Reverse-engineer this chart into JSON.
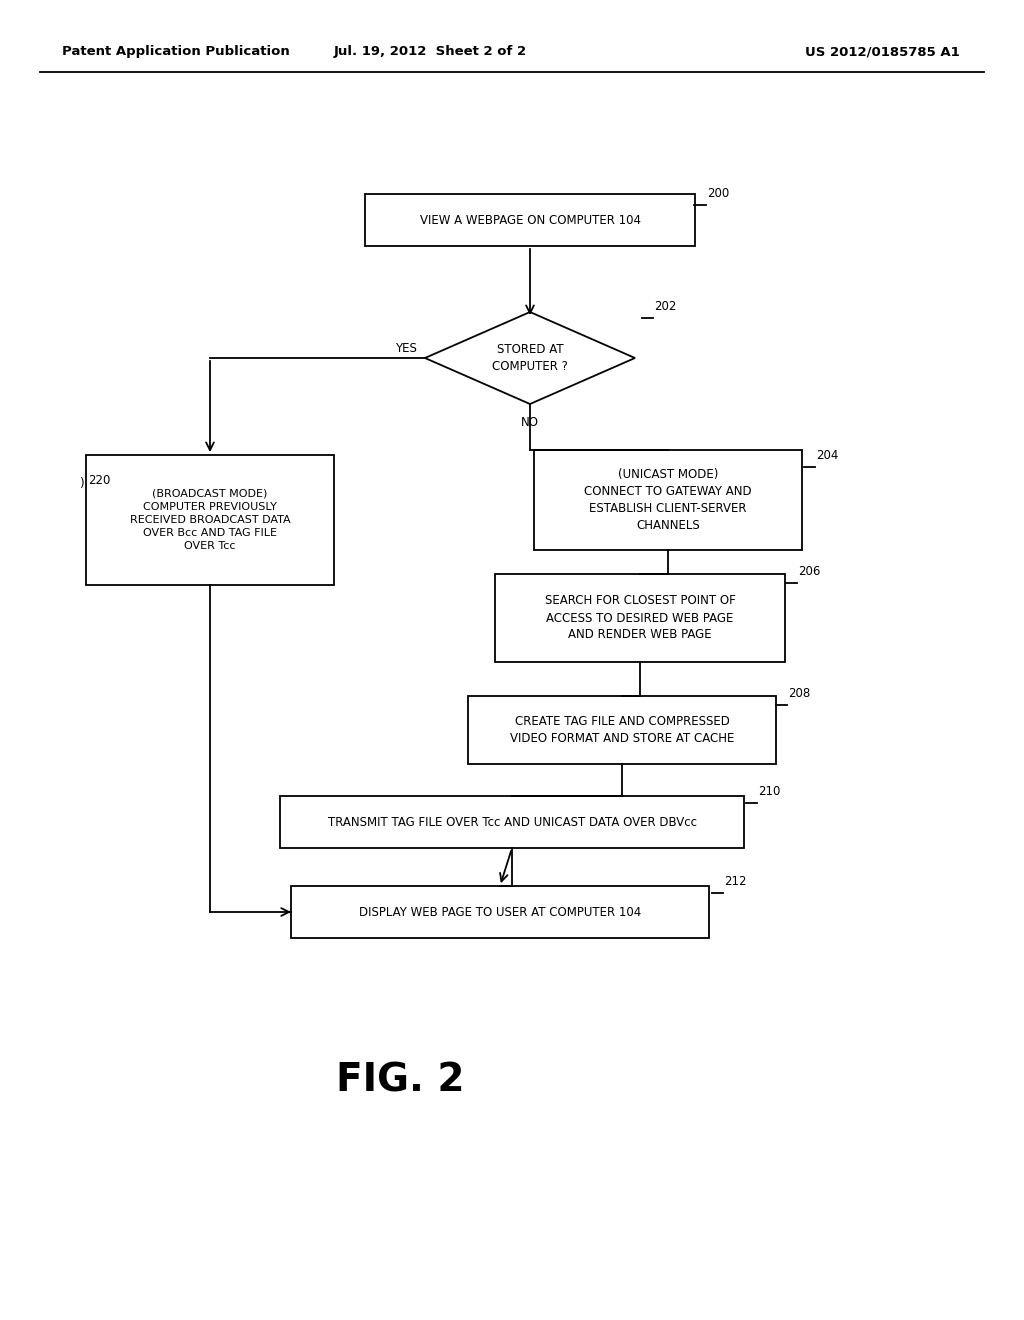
{
  "bg_color": "#ffffff",
  "header_left": "Patent Application Publication",
  "header_center": "Jul. 19, 2012  Sheet 2 of 2",
  "header_right": "US 2012/0185785 A1",
  "figure_label": "FIG. 2",
  "box200_label": "VIEW A WEBPAGE ON COMPUTER 104",
  "box202_label": "STORED AT\nCOMPUTER ?",
  "box220_label": "(BROADCAST MODE)\nCOMPUTER PREVIOUSLY\nRECEIVED BROADCAST DATA\nOVER Bcc AND TAG FILE\nOVER Tcc",
  "box204_label": "(UNICAST MODE)\nCONNECT TO GATEWAY AND\nESTABLISH CLIENT-SERVER\nCHANNELS",
  "box206_label": "SEARCH FOR CLOSEST POINT OF\nACCESS TO DESIRED WEB PAGE\nAND RENDER WEB PAGE",
  "box208_label": "CREATE TAG FILE AND COMPRESSED\nVIDEO FORMAT AND STORE AT CACHE",
  "box210_label": "TRANSMIT TAG FILE OVER Tcc AND UNICAST DATA OVER DBVcc",
  "box212_label": "DISPLAY WEB PAGE TO USER AT COMPUTER 104",
  "yes_label": "YES",
  "no_label": "NO",
  "ref200": "200",
  "ref202": "202",
  "ref220": "220",
  "ref204": "204",
  "ref206": "206",
  "ref208": "208",
  "ref210": "210",
  "ref212": "212"
}
